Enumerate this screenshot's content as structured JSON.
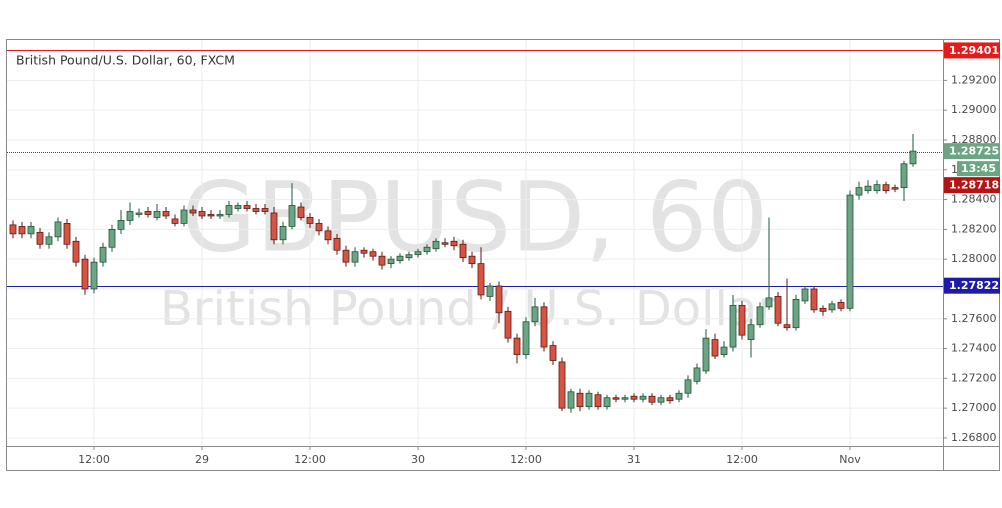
{
  "chart_data": {
    "type": "candlestick",
    "title": "British Pound/U.S. Dollar, 60, FXCM",
    "watermark": [
      "GBPUSD, 60",
      "British Pound / U.S. Dollar"
    ],
    "categories": [
      null,
      null,
      null,
      null,
      null,
      null,
      null,
      null,
      null,
      "12:00",
      null,
      null,
      null,
      null,
      null,
      null,
      null,
      null,
      null,
      null,
      null,
      "29",
      null,
      null,
      null,
      null,
      null,
      null,
      null,
      null,
      null,
      null,
      null,
      "12:00",
      null,
      null,
      null,
      null,
      null,
      null,
      null,
      null,
      null,
      null,
      null,
      "30",
      null,
      null,
      null,
      null,
      null,
      null,
      null,
      null,
      null,
      null,
      null,
      "12:00",
      null,
      null,
      null,
      null,
      null,
      null,
      null,
      null,
      null,
      null,
      null,
      "31",
      null,
      null,
      null,
      null,
      null,
      null,
      null,
      null,
      null,
      null,
      null,
      "12:00",
      null,
      null,
      null,
      null,
      null,
      null,
      null,
      null,
      null,
      null,
      null,
      "Nov",
      null,
      null,
      null,
      null,
      null,
      null,
      null
    ],
    "open": [
      1.2823,
      1.2822,
      1.2817,
      1.2818,
      1.281,
      1.2815,
      1.2824,
      1.2812,
      1.28,
      1.278,
      1.2798,
      1.2808,
      1.282,
      1.2826,
      1.283,
      1.2832,
      1.2828,
      1.2832,
      1.2827,
      1.2824,
      1.2833,
      1.2832,
      1.283,
      1.2829,
      1.283,
      1.2834,
      1.2836,
      1.2834,
      1.2834,
      1.2831,
      1.2813,
      1.2822,
      1.2835,
      1.2828,
      1.2824,
      1.2819,
      1.2814,
      1.2806,
      1.2798,
      1.2806,
      1.2805,
      1.2802,
      1.2797,
      1.2799,
      1.2801,
      1.2803,
      1.2805,
      1.2807,
      1.2811,
      1.2812,
      1.281,
      1.2802,
      1.2797,
      1.2775,
      1.2782,
      1.2765,
      1.2747,
      1.2736,
      1.2758,
      1.2768,
      1.2742,
      1.2731,
      1.27,
      1.271,
      1.2701,
      1.2709,
      1.2701,
      1.2707,
      1.2706,
      1.2708,
      1.2706,
      1.2708,
      1.2704,
      1.2707,
      1.2706,
      1.271,
      1.2718,
      1.2725,
      1.2746,
      1.2736,
      1.2741,
      1.2769,
      1.2746,
      1.2756,
      1.2768,
      1.2775,
      1.2756,
      1.2754,
      1.2772,
      1.278,
      1.2767,
      1.2766,
      1.2771,
      1.2767,
      1.2843,
      1.2846,
      1.2846,
      1.285,
      1.2848,
      1.2848,
      1.2864
    ],
    "high": [
      1.2826,
      1.2825,
      1.2825,
      1.2821,
      1.2818,
      1.2828,
      1.2827,
      1.2815,
      1.2803,
      1.2801,
      1.2811,
      1.2823,
      1.2833,
      1.2838,
      1.2834,
      1.2835,
      1.2837,
      1.2835,
      1.283,
      1.2836,
      1.2836,
      1.2835,
      1.2833,
      1.2833,
      1.2839,
      1.2838,
      1.2839,
      1.2837,
      1.2837,
      1.2835,
      1.2825,
      1.2851,
      1.2838,
      1.2831,
      1.2827,
      1.2822,
      1.2817,
      1.2809,
      1.2808,
      1.2808,
      1.2807,
      1.2805,
      1.2802,
      1.2804,
      1.2805,
      1.2807,
      1.281,
      1.2814,
      1.2814,
      1.2815,
      1.2813,
      1.2805,
      1.2808,
      1.2784,
      1.2785,
      1.2768,
      1.275,
      1.2761,
      1.2774,
      1.2771,
      1.2745,
      1.2734,
      1.2713,
      1.2713,
      1.2712,
      1.2711,
      1.2709,
      1.2709,
      1.2709,
      1.271,
      1.271,
      1.271,
      1.2709,
      1.2709,
      1.2712,
      1.2722,
      1.273,
      1.2753,
      1.275,
      1.2745,
      1.2776,
      1.2772,
      1.276,
      1.2771,
      1.2828,
      1.2778,
      1.2787,
      1.2776,
      1.2782,
      1.2782,
      1.2769,
      1.2772,
      1.2773,
      1.2846,
      1.2852,
      1.2853,
      1.2853,
      1.2852,
      1.285,
      1.2866,
      1.2884
    ],
    "low": [
      1.2814,
      1.2814,
      1.2814,
      1.2807,
      1.2807,
      1.2812,
      1.2807,
      1.2795,
      1.2776,
      1.2777,
      1.2795,
      1.2805,
      1.2817,
      1.2823,
      1.2828,
      1.2828,
      1.2826,
      1.2827,
      1.2822,
      1.2822,
      1.2829,
      1.2827,
      1.2827,
      1.2827,
      1.2828,
      1.2832,
      1.2832,
      1.283,
      1.283,
      1.281,
      1.281,
      1.282,
      1.2826,
      1.2821,
      1.2816,
      1.281,
      1.2803,
      1.2795,
      1.2795,
      1.2801,
      1.2799,
      1.2793,
      1.2794,
      1.2797,
      1.2799,
      1.2801,
      1.2803,
      1.2805,
      1.2808,
      1.2806,
      1.2798,
      1.2794,
      1.2773,
      1.2772,
      1.2757,
      1.2744,
      1.273,
      1.2733,
      1.2755,
      1.2738,
      1.2729,
      1.2698,
      1.2697,
      1.2698,
      1.2699,
      1.2699,
      1.2699,
      1.2704,
      1.2704,
      1.2704,
      1.2704,
      1.2702,
      1.2702,
      1.2703,
      1.2704,
      1.2707,
      1.2716,
      1.2723,
      1.2733,
      1.2734,
      1.2738,
      1.2746,
      1.2734,
      1.2754,
      1.2766,
      1.2755,
      1.2752,
      1.2752,
      1.277,
      1.2764,
      1.2762,
      1.2764,
      1.2765,
      1.2765,
      1.284,
      1.2844,
      1.2844,
      1.2844,
      1.2845,
      1.2839,
      1.2862
    ],
    "close": [
      1.2817,
      1.2817,
      1.2822,
      1.281,
      1.2815,
      1.2825,
      1.281,
      1.2798,
      1.278,
      1.2798,
      1.2808,
      1.282,
      1.2826,
      1.2832,
      1.2831,
      1.283,
      1.2832,
      1.2829,
      1.2824,
      1.2833,
      1.2831,
      1.2829,
      1.2829,
      1.283,
      1.2836,
      1.2836,
      1.2834,
      1.2832,
      1.2832,
      1.2813,
      1.2822,
      1.2836,
      1.2828,
      1.2824,
      1.2819,
      1.2813,
      1.2806,
      1.2798,
      1.2805,
      1.2804,
      1.2802,
      1.2796,
      1.28,
      1.2802,
      1.2803,
      1.2805,
      1.2808,
      1.2812,
      1.281,
      1.2809,
      1.2801,
      1.2797,
      1.2776,
      1.2782,
      1.2764,
      1.2747,
      1.2736,
      1.2758,
      1.2768,
      1.2741,
      1.2732,
      1.27,
      1.2711,
      1.2701,
      1.271,
      1.2701,
      1.2707,
      1.2706,
      1.2707,
      1.2706,
      1.2708,
      1.2704,
      1.2707,
      1.2705,
      1.271,
      1.2719,
      1.2727,
      1.2747,
      1.2735,
      1.2741,
      1.2769,
      1.2749,
      1.2756,
      1.2768,
      1.2774,
      1.2757,
      1.2754,
      1.2773,
      1.278,
      1.2766,
      1.2765,
      1.277,
      1.2767,
      1.2843,
      1.2848,
      1.2849,
      1.285,
      1.2846,
      1.2847,
      1.2864,
      1.28725
    ],
    "up_color": "#6ba583",
    "up_border": "#225437",
    "down_color": "#d75442",
    "down_border": "#5b1a13",
    "ylim": [
      1.26746,
      1.29471
    ],
    "yticks": [
      {
        "value": 1.268,
        "label": "1.26800"
      },
      {
        "value": 1.27,
        "label": "1.27000"
      },
      {
        "value": 1.272,
        "label": "1.27200"
      },
      {
        "value": 1.274,
        "label": "1.27400"
      },
      {
        "value": 1.276,
        "label": "1.27600"
      },
      {
        "value": 1.278,
        "label": "1.27800"
      },
      {
        "value": 1.28,
        "label": "1.28000"
      },
      {
        "value": 1.282,
        "label": "1.28200"
      },
      {
        "value": 1.284,
        "label": "1.28400"
      },
      {
        "value": 1.286,
        "label": "1.28600"
      },
      {
        "value": 1.288,
        "label": "1.28800"
      },
      {
        "value": 1.29,
        "label": "1.29000"
      },
      {
        "value": 1.292,
        "label": "1.29200"
      },
      {
        "value": 1.294,
        "label": "1.29400"
      }
    ],
    "grid": true,
    "price_lines": [
      {
        "value": 1.29401,
        "color": "#e31b1b",
        "style": "solid"
      },
      {
        "value": 1.28718,
        "color": "#b51414",
        "style": "dotted"
      },
      {
        "value": 1.27822,
        "color": "#1c1ca8",
        "style": "solid"
      }
    ],
    "last_price": {
      "value": 1.28725,
      "color": "#6ba583"
    },
    "countdown": "13:45"
  }
}
